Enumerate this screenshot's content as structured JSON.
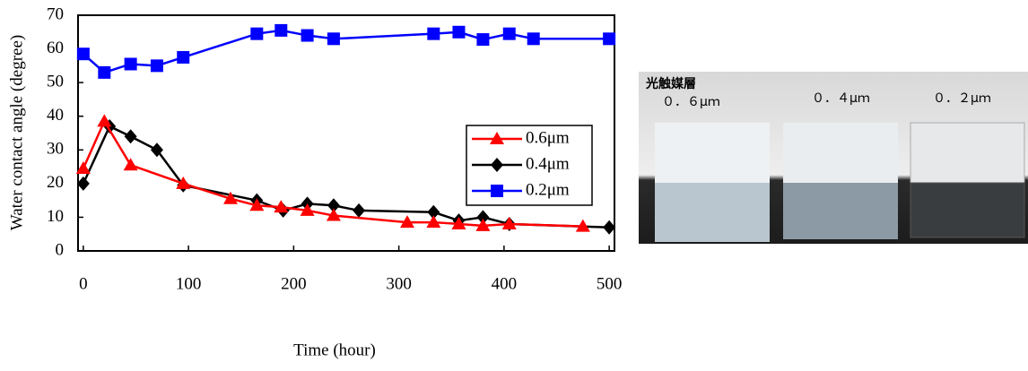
{
  "chart_data": {
    "type": "line",
    "x_label": "Time (hour)",
    "y_label": "Water contact angle (degree)",
    "xlim": [
      -5,
      505
    ],
    "xticks": [
      0,
      100,
      200,
      300,
      400,
      500
    ],
    "ylim": [
      0,
      70
    ],
    "yticks": [
      0,
      10,
      20,
      30,
      40,
      50,
      60,
      70
    ],
    "grid": false,
    "legend": "center right",
    "series": [
      {
        "name": "0.6μm",
        "color": "#ff0000",
        "marker": "triangle",
        "x": [
          0,
          20,
          45,
          95,
          140,
          165,
          188,
          213,
          238,
          308,
          333,
          357,
          380,
          405,
          475
        ],
        "values": [
          24.5,
          38.5,
          25.5,
          20,
          15.5,
          13.5,
          13,
          12,
          10.5,
          8.5,
          8.5,
          8,
          7.5,
          8,
          7.3
        ]
      },
      {
        "name": "0.4μm",
        "color": "#000000",
        "marker": "diamond",
        "x": [
          0,
          25,
          45,
          70,
          95,
          165,
          190,
          213,
          238,
          262,
          333,
          357,
          380,
          405,
          500
        ],
        "values": [
          20,
          37,
          34,
          30,
          19.5,
          15,
          12,
          14,
          13.5,
          12,
          11.5,
          9,
          10,
          8,
          7
        ]
      },
      {
        "name": "0.2μm",
        "color": "#0000ff",
        "marker": "square",
        "x": [
          0,
          20,
          45,
          70,
          95,
          165,
          188,
          213,
          238,
          333,
          357,
          380,
          405,
          428,
          500
        ],
        "values": [
          58.5,
          53,
          55.5,
          55,
          57.5,
          64.5,
          65.5,
          64,
          63,
          64.5,
          65,
          62.8,
          64.5,
          63,
          63
        ]
      }
    ]
  },
  "photo": {
    "title": "光触媒層",
    "labels": [
      "０．６μｍ",
      "０．４μｍ",
      "０．２μｍ"
    ]
  }
}
